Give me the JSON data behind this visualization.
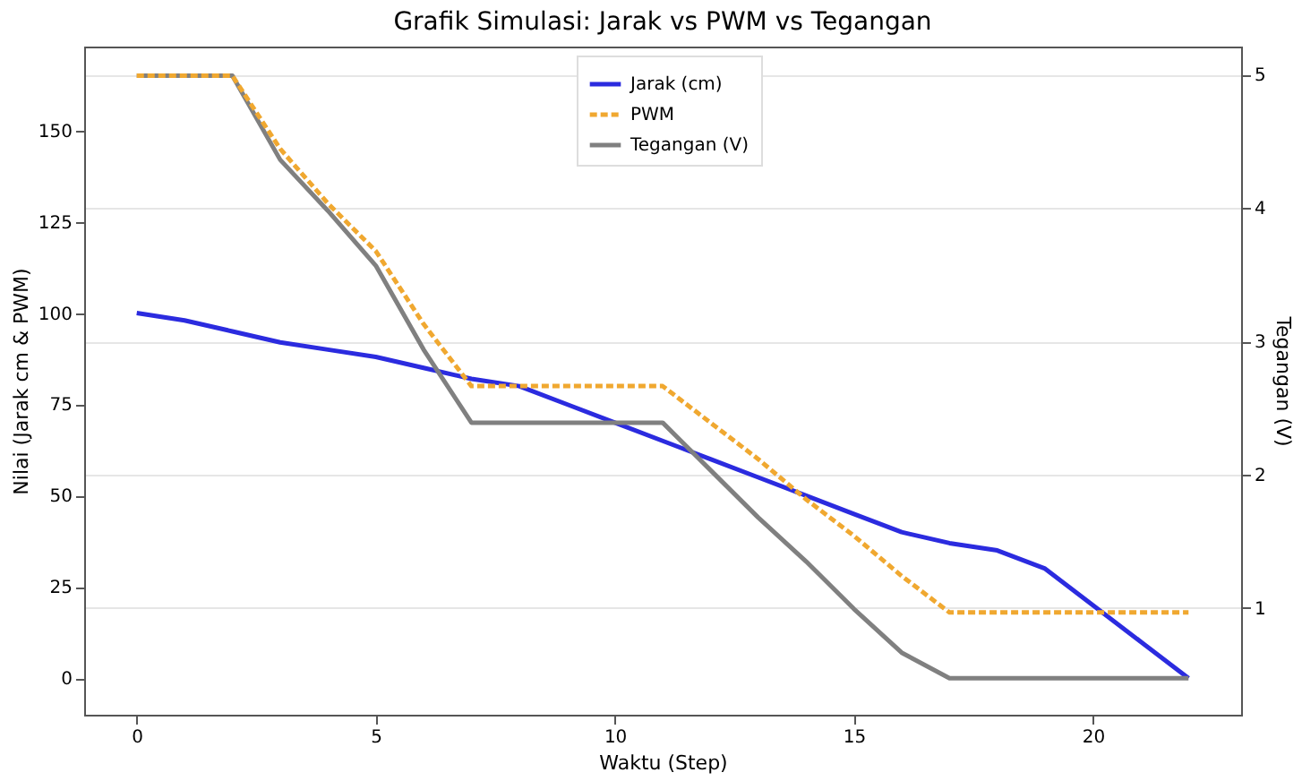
{
  "chart_data": {
    "type": "line",
    "title": "Grafik Simulasi: Jarak vs PWM vs Tegangan",
    "xlabel": "Waktu (Step)",
    "ylabel": "Nilai (Jarak cm & PWM)",
    "y2label": "Tegangan (V)",
    "x": [
      0,
      1,
      2,
      3,
      4,
      5,
      6,
      7,
      8,
      9,
      10,
      11,
      12,
      13,
      14,
      15,
      16,
      17,
      18,
      19,
      20,
      21,
      22
    ],
    "series": [
      {
        "name": "Jarak (cm)",
        "color": "#2b2bdf",
        "line_style": "solid",
        "values": [
          100,
          98,
          95,
          92,
          90,
          88,
          85,
          82,
          80,
          75,
          70,
          65,
          60,
          55,
          50,
          45,
          40,
          37,
          35,
          30,
          20,
          10,
          0
        ]
      },
      {
        "name": "PWM",
        "color": "#f0a830",
        "line_style": "dashed",
        "values": [
          165,
          165,
          165,
          145,
          130,
          117,
          97,
          80,
          80,
          80,
          80,
          80,
          70,
          60,
          49,
          39,
          28,
          18,
          18,
          18,
          18,
          18,
          18
        ]
      },
      {
        "name": "Tegangan (V)",
        "color": "#808080",
        "line_style": "solid",
        "values": [
          165,
          165,
          165,
          142,
          128,
          113,
          90,
          70,
          70,
          70,
          70,
          70,
          57,
          44,
          32,
          19,
          7,
          0,
          0,
          0,
          0,
          0,
          0
        ]
      }
    ],
    "xlim": [
      -1.1,
      23.1
    ],
    "xticks": [
      0,
      5,
      10,
      15,
      20
    ],
    "ylim": [
      -10,
      173
    ],
    "yticks": [
      0,
      25,
      50,
      75,
      100,
      125,
      150
    ],
    "y2lim": [
      0.2,
      5.21
    ],
    "y2ticks": [
      1,
      2,
      3,
      4,
      5
    ],
    "grid": true,
    "legend": "top",
    "marker": "none"
  }
}
